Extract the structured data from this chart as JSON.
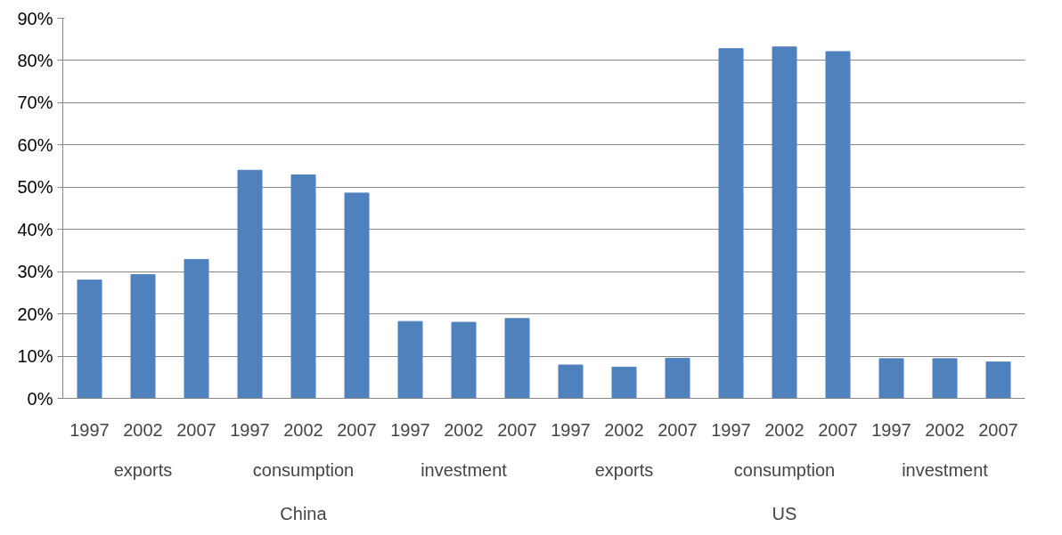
{
  "chart_data": {
    "type": "bar",
    "categories": [
      "1997",
      "2002",
      "2007",
      "1997",
      "2002",
      "2007",
      "1997",
      "2002",
      "2007",
      "1997",
      "2002",
      "2007",
      "1997",
      "2002",
      "2007",
      "1997",
      "2002",
      "2007"
    ],
    "values": [
      28,
      29.3,
      32.9,
      54,
      52.9,
      48.6,
      18.2,
      18,
      18.9,
      7.9,
      7.4,
      9.5,
      82.8,
      83.2,
      82.1,
      9.4,
      9.4,
      8.6
    ],
    "color": "#4f81bd",
    "ylim": [
      0,
      90
    ],
    "yticks": [
      {
        "value": 0,
        "label": "0%"
      },
      {
        "value": 10,
        "label": "10%"
      },
      {
        "value": 20,
        "label": "20%"
      },
      {
        "value": 30,
        "label": "30%"
      },
      {
        "value": 40,
        "label": "40%"
      },
      {
        "value": 50,
        "label": "50%"
      },
      {
        "value": 60,
        "label": "60%"
      },
      {
        "value": 70,
        "label": "70%"
      },
      {
        "value": 80,
        "label": "80%"
      },
      {
        "value": 90,
        "label": "90%"
      }
    ],
    "annotations": [
      "exports",
      "consumption",
      "investment",
      "exports",
      "consumption",
      "investment",
      "China",
      "US"
    ],
    "grid": "y"
  }
}
